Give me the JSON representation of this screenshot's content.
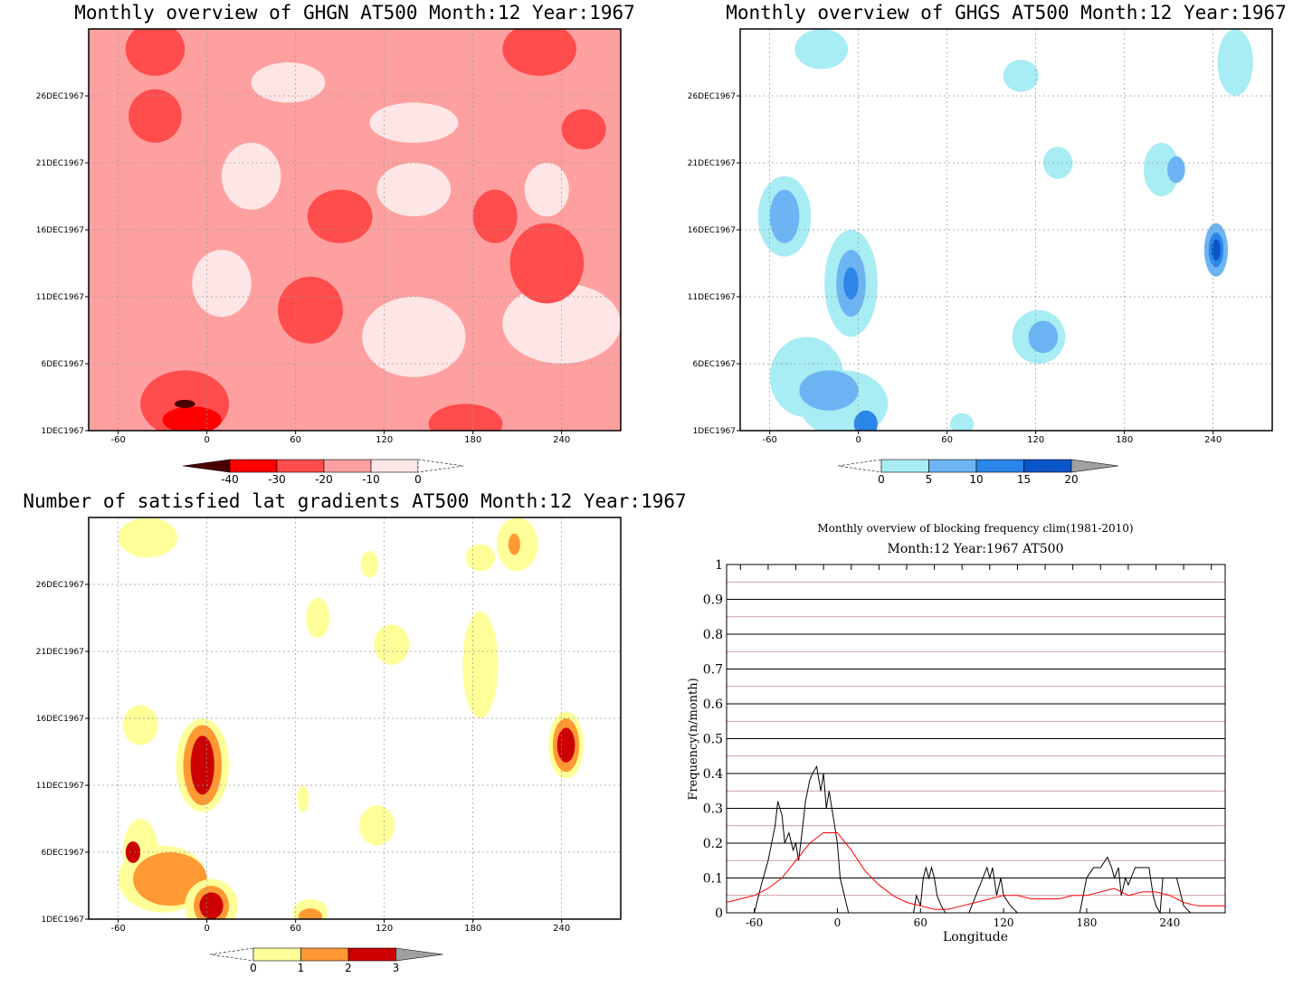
{
  "colors": {
    "ghgn": [
      "#4b0000",
      "#ff0000",
      "#ff4c4c",
      "#ffa0a0",
      "#ffe6e6",
      "#ffffff"
    ],
    "ghgs": [
      "#ffffff",
      "#a8ecf4",
      "#6cb4f4",
      "#2a86e8",
      "#0a55c8",
      "#a0a0a0"
    ],
    "nsat": [
      "#ffffff",
      "#ffff99",
      "#ff9933",
      "#cc0000",
      "#a0a0a0"
    ],
    "freq_line": "#000000",
    "clim_line": "#ff0000",
    "grid_red": "#c08080"
  },
  "chart_data": [
    {
      "type": "heatmap",
      "title": "Monthly overview of GHGN AT500 Month:12 Year:1967",
      "x_ticks": [
        "-60",
        "0",
        "60",
        "120",
        "180",
        "240"
      ],
      "y_ticks": [
        "1DEC1967",
        "6DEC1967",
        "11DEC1967",
        "16DEC1967",
        "21DEC1967",
        "26DEC1967"
      ],
      "xlim": [
        -80,
        280
      ],
      "ylim": [
        1,
        31
      ],
      "colorbar": {
        "levels": [
          "-40",
          "-30",
          "-20",
          "-10",
          "0"
        ]
      },
      "blobs": [
        {
          "x": -35,
          "y": 29.5,
          "rx": 20,
          "ry": 2,
          "level": 2
        },
        {
          "x": -35,
          "y": 24.5,
          "rx": 18,
          "ry": 2,
          "level": 2
        },
        {
          "x": -15,
          "y": 3,
          "rx": 30,
          "ry": 2.5,
          "level": 2
        },
        {
          "x": -10,
          "y": 1.8,
          "rx": 20,
          "ry": 1,
          "level": 1
        },
        {
          "x": -15,
          "y": 3,
          "rx": 7,
          "ry": 0.3,
          "level": 0
        },
        {
          "x": 90,
          "y": 17,
          "rx": 22,
          "ry": 2,
          "level": 2
        },
        {
          "x": 70,
          "y": 10,
          "rx": 22,
          "ry": 2.5,
          "level": 2
        },
        {
          "x": 175,
          "y": 1.5,
          "rx": 25,
          "ry": 1.5,
          "level": 2
        },
        {
          "x": 225,
          "y": 29.5,
          "rx": 25,
          "ry": 2,
          "level": 2
        },
        {
          "x": 255,
          "y": 23.5,
          "rx": 15,
          "ry": 1.5,
          "level": 2
        },
        {
          "x": 195,
          "y": 17,
          "rx": 15,
          "ry": 2,
          "level": 2
        },
        {
          "x": 230,
          "y": 13.5,
          "rx": 25,
          "ry": 3,
          "level": 2
        }
      ]
    },
    {
      "type": "heatmap",
      "title": "Monthly overview of GHGS AT500 Month:12 Year:1967",
      "x_ticks": [
        "-60",
        "0",
        "60",
        "120",
        "180",
        "240"
      ],
      "y_ticks": [
        "1DEC1967",
        "6DEC1967",
        "11DEC1967",
        "16DEC1967",
        "21DEC1967",
        "26DEC1967"
      ],
      "xlim": [
        -80,
        280
      ],
      "ylim": [
        1,
        31
      ],
      "colorbar": {
        "levels": [
          "0",
          "5",
          "10",
          "15",
          "20"
        ]
      },
      "blobs": [
        {
          "x": -25,
          "y": 29.5,
          "rx": 18,
          "ry": 1.5,
          "level": 1
        },
        {
          "x": -50,
          "y": 17,
          "rx": 18,
          "ry": 3,
          "level": 1
        },
        {
          "x": -50,
          "y": 17,
          "rx": 10,
          "ry": 2,
          "level": 2
        },
        {
          "x": -5,
          "y": 12,
          "rx": 18,
          "ry": 4,
          "level": 1
        },
        {
          "x": -5,
          "y": 12,
          "rx": 10,
          "ry": 2.5,
          "level": 2
        },
        {
          "x": -5,
          "y": 12,
          "rx": 5,
          "ry": 1.2,
          "level": 3
        },
        {
          "x": -35,
          "y": 5,
          "rx": 25,
          "ry": 3,
          "level": 1
        },
        {
          "x": -10,
          "y": 3,
          "rx": 30,
          "ry": 2.5,
          "level": 1
        },
        {
          "x": -20,
          "y": 4,
          "rx": 20,
          "ry": 1.5,
          "level": 2
        },
        {
          "x": 5,
          "y": 1.5,
          "rx": 8,
          "ry": 1,
          "level": 3
        },
        {
          "x": 122,
          "y": 8,
          "rx": 18,
          "ry": 2,
          "level": 1
        },
        {
          "x": 125,
          "y": 8,
          "rx": 10,
          "ry": 1.2,
          "level": 2
        },
        {
          "x": 110,
          "y": 27.5,
          "rx": 12,
          "ry": 1.2,
          "level": 1
        },
        {
          "x": 205,
          "y": 20.5,
          "rx": 12,
          "ry": 2,
          "level": 1
        },
        {
          "x": 215,
          "y": 20.5,
          "rx": 6,
          "ry": 1,
          "level": 2
        },
        {
          "x": 242,
          "y": 14.5,
          "rx": 8,
          "ry": 2,
          "level": 2
        },
        {
          "x": 242,
          "y": 14.5,
          "rx": 5,
          "ry": 1.3,
          "level": 3
        },
        {
          "x": 242,
          "y": 14.5,
          "rx": 3,
          "ry": 0.8,
          "level": 4
        },
        {
          "x": 255,
          "y": 28.5,
          "rx": 12,
          "ry": 2.5,
          "level": 1
        },
        {
          "x": 135,
          "y": 21,
          "rx": 10,
          "ry": 1.2,
          "level": 1
        },
        {
          "x": 70,
          "y": 1.5,
          "rx": 8,
          "ry": 0.8,
          "level": 1
        }
      ]
    },
    {
      "type": "heatmap",
      "title": "Number of satisfied lat gradients AT500 Month:12 Year:1967",
      "x_ticks": [
        "-60",
        "0",
        "60",
        "120",
        "180",
        "240"
      ],
      "y_ticks": [
        "1DEC1967",
        "6DEC1967",
        "11DEC1967",
        "16DEC1967",
        "21DEC1967",
        "26DEC1967"
      ],
      "xlim": [
        -80,
        280
      ],
      "ylim": [
        1,
        31
      ],
      "colorbar": {
        "levels": [
          "0",
          "1",
          "2",
          "3"
        ]
      },
      "blobs": [
        {
          "x": -40,
          "y": 29.5,
          "rx": 20,
          "ry": 1.5,
          "level": 1
        },
        {
          "x": -45,
          "y": 15.5,
          "rx": 12,
          "ry": 1.5,
          "level": 1
        },
        {
          "x": -3,
          "y": 12.5,
          "rx": 18,
          "ry": 3.5,
          "level": 1
        },
        {
          "x": -3,
          "y": 12.5,
          "rx": 13,
          "ry": 3,
          "level": 2
        },
        {
          "x": -3,
          "y": 12.5,
          "rx": 8,
          "ry": 2.2,
          "level": 3
        },
        {
          "x": -45,
          "y": 6,
          "rx": 12,
          "ry": 2.5,
          "level": 1
        },
        {
          "x": -30,
          "y": 4,
          "rx": 30,
          "ry": 2.5,
          "level": 1
        },
        {
          "x": -25,
          "y": 4,
          "rx": 25,
          "ry": 2,
          "level": 2
        },
        {
          "x": -50,
          "y": 6,
          "rx": 5,
          "ry": 0.8,
          "level": 3
        },
        {
          "x": 3,
          "y": 2,
          "rx": 18,
          "ry": 2,
          "level": 1
        },
        {
          "x": 3,
          "y": 2,
          "rx": 12,
          "ry": 1.5,
          "level": 2
        },
        {
          "x": 3,
          "y": 2,
          "rx": 8,
          "ry": 1,
          "level": 3
        },
        {
          "x": 243,
          "y": 14,
          "rx": 12,
          "ry": 2.5,
          "level": 1
        },
        {
          "x": 243,
          "y": 14,
          "rx": 9,
          "ry": 2,
          "level": 2
        },
        {
          "x": 243,
          "y": 14,
          "rx": 6,
          "ry": 1.3,
          "level": 3
        },
        {
          "x": 210,
          "y": 29,
          "rx": 14,
          "ry": 2,
          "level": 1
        },
        {
          "x": 208,
          "y": 29,
          "rx": 4,
          "ry": 0.8,
          "level": 2
        },
        {
          "x": 185,
          "y": 20,
          "rx": 12,
          "ry": 4,
          "level": 1
        },
        {
          "x": 185,
          "y": 28,
          "rx": 10,
          "ry": 1,
          "level": 1
        },
        {
          "x": 125,
          "y": 21.5,
          "rx": 12,
          "ry": 1.5,
          "level": 1
        },
        {
          "x": 115,
          "y": 8,
          "rx": 12,
          "ry": 1.5,
          "level": 1
        },
        {
          "x": 75,
          "y": 23.5,
          "rx": 8,
          "ry": 1.5,
          "level": 1
        },
        {
          "x": 110,
          "y": 27.5,
          "rx": 6,
          "ry": 1,
          "level": 1
        },
        {
          "x": 70,
          "y": 1.5,
          "rx": 12,
          "ry": 1,
          "level": 1
        },
        {
          "x": 70,
          "y": 1.2,
          "rx": 8,
          "ry": 0.6,
          "level": 2
        },
        {
          "x": 65,
          "y": 10,
          "rx": 4,
          "ry": 1,
          "level": 1
        }
      ]
    },
    {
      "type": "line",
      "title": "Monthly overview of blocking frequency clim(1981-2010)",
      "subtitle": "Month:12 Year:1967  AT500",
      "xlabel": "Longitude",
      "ylabel": "Frequency(n/month)",
      "xlim": [
        -80,
        280
      ],
      "ylim": [
        0,
        1
      ],
      "x_ticks": [
        "-60",
        "0",
        "60",
        "120",
        "180",
        "240"
      ],
      "y_ticks": [
        "0",
        "0.1",
        "0.2",
        "0.3",
        "0.4",
        "0.5",
        "0.6",
        "0.7",
        "0.8",
        "0.9",
        "1"
      ],
      "series": [
        {
          "color": "black",
          "x": [
            -80,
            -60,
            -55,
            -50,
            -45,
            -43,
            -40,
            -38,
            -35,
            -32,
            -30,
            -28,
            -25,
            -23,
            -20,
            -18,
            -15,
            -12,
            -10,
            -8,
            -6,
            -4,
            -2,
            0,
            2,
            5,
            8,
            10,
            12,
            15,
            18,
            20,
            55,
            57,
            60,
            62,
            64,
            66,
            68,
            70,
            72,
            75,
            78,
            80,
            85,
            90,
            95,
            100,
            105,
            108,
            110,
            112,
            115,
            118,
            120,
            125,
            130,
            135,
            140,
            175,
            180,
            185,
            190,
            195,
            198,
            200,
            203,
            205,
            208,
            210,
            212,
            215,
            220,
            225,
            228,
            230,
            233,
            235,
            238,
            240,
            245,
            250,
            255,
            260,
            280
          ],
          "y": [
            0,
            0,
            0.08,
            0.15,
            0.25,
            0.32,
            0.28,
            0.2,
            0.23,
            0.18,
            0.2,
            0.15,
            0.25,
            0.32,
            0.38,
            0.4,
            0.42,
            0.35,
            0.4,
            0.3,
            0.35,
            0.3,
            0.25,
            0.2,
            0.1,
            0.05,
            0,
            0,
            0,
            0,
            0,
            0,
            0,
            0.05,
            0.02,
            0.1,
            0.13,
            0.1,
            0.13,
            0.1,
            0.05,
            0.02,
            0,
            0,
            0,
            0,
            0,
            0.05,
            0.1,
            0.13,
            0.1,
            0.13,
            0.05,
            0.1,
            0.05,
            0.02,
            0,
            0,
            0,
            0,
            0.1,
            0.13,
            0.13,
            0.16,
            0.13,
            0.1,
            0.13,
            0.05,
            0.1,
            0.08,
            0.1,
            0.13,
            0.13,
            0.13,
            0.05,
            0.02,
            0,
            0.1,
            0.1,
            0.1,
            0.1,
            0.02,
            0,
            0,
            0
          ]
        },
        {
          "color": "red",
          "x": [
            -80,
            -70,
            -60,
            -50,
            -40,
            -30,
            -20,
            -10,
            0,
            10,
            20,
            30,
            40,
            50,
            60,
            70,
            80,
            90,
            100,
            110,
            120,
            130,
            140,
            150,
            160,
            170,
            180,
            190,
            200,
            210,
            220,
            230,
            240,
            250,
            260,
            270,
            280
          ],
          "y": [
            0.03,
            0.04,
            0.05,
            0.07,
            0.1,
            0.15,
            0.2,
            0.23,
            0.23,
            0.18,
            0.12,
            0.08,
            0.05,
            0.03,
            0.02,
            0.01,
            0.01,
            0.02,
            0.03,
            0.04,
            0.05,
            0.05,
            0.04,
            0.04,
            0.04,
            0.05,
            0.05,
            0.06,
            0.07,
            0.05,
            0.06,
            0.06,
            0.05,
            0.03,
            0.02,
            0.02,
            0.02
          ]
        }
      ]
    }
  ]
}
